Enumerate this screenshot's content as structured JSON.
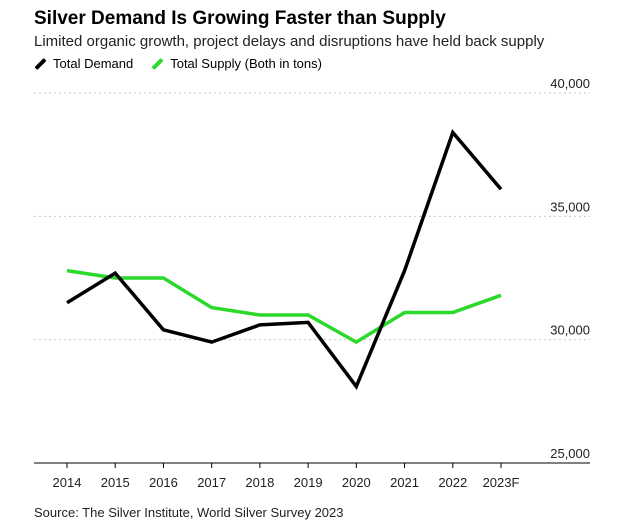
{
  "chart_data": {
    "type": "line",
    "title": "Silver Demand Is Growing Faster than Supply",
    "subtitle": "Limited organic growth, project delays and disruptions have held back supply",
    "categories": [
      "2014",
      "2015",
      "2016",
      "2017",
      "2018",
      "2019",
      "2020",
      "2021",
      "2022",
      "2023F"
    ],
    "series": [
      {
        "name": "Total Demand",
        "color": "#000000",
        "values": [
          31500,
          32700,
          30400,
          29900,
          30600,
          30700,
          28100,
          32800,
          38400,
          36100
        ]
      },
      {
        "name": "Total Supply (Both in tons)",
        "color": "#2bd92b",
        "values": [
          32800,
          32500,
          32500,
          31300,
          31000,
          31000,
          29900,
          31100,
          31100,
          31800
        ]
      }
    ],
    "y_ticks": [
      25000,
      30000,
      35000,
      40000
    ],
    "y_tick_labels": [
      "25,000",
      "30,000",
      "35,000",
      "40,000"
    ],
    "ylim": [
      25000,
      40000
    ],
    "xlabel": "",
    "ylabel": "",
    "grid": true,
    "legend_position": "top-left",
    "source": "Source: The Silver Institute, World Silver Survey 2023"
  }
}
